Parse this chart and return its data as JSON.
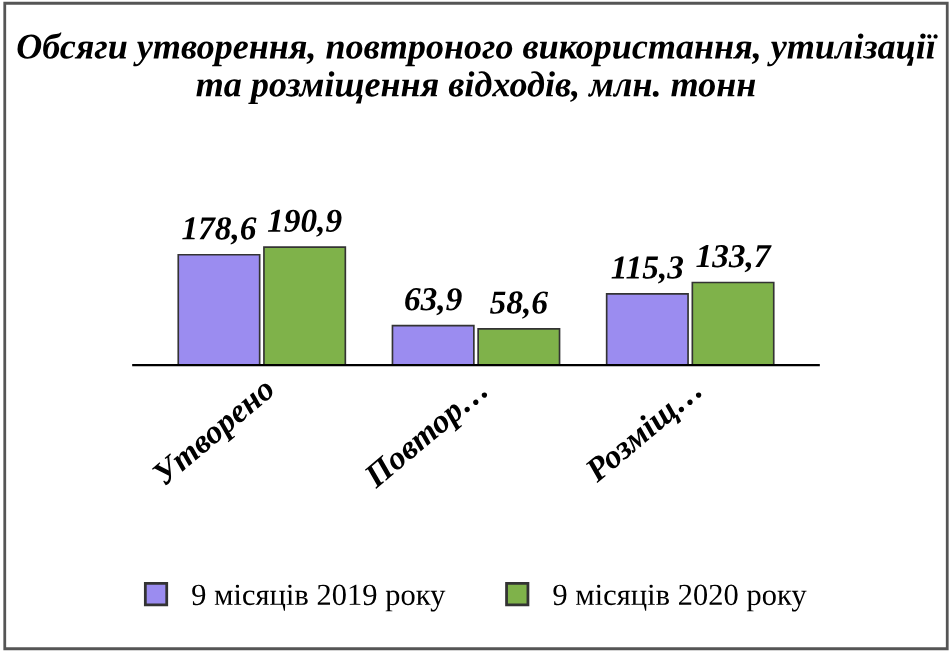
{
  "chart_data": {
    "type": "bar",
    "title": "Обсяги утворення, повтроного використання, утилізації та розміщення відходів, млн. тонн",
    "categories": [
      "Утворено",
      "Повтор…",
      "Розміщ…"
    ],
    "series": [
      {
        "name": "9 місяців 2019 року",
        "color": "#9b8cf0",
        "values": [
          178.6,
          63.9,
          115.3
        ],
        "value_labels": [
          "178,6",
          "63,9",
          "115,3"
        ]
      },
      {
        "name": "9 місяців 2020 року",
        "color": "#7fb24a",
        "values": [
          190.9,
          58.6,
          133.7
        ],
        "value_labels": [
          "190,9",
          "58,6",
          "133,7"
        ]
      }
    ],
    "legend": "bottom",
    "grid": false
  }
}
